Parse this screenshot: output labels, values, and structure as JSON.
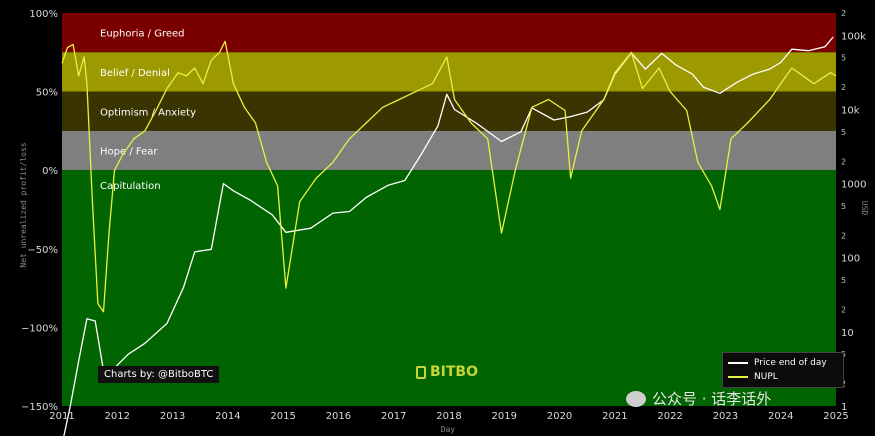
{
  "chart_data": {
    "type": "line",
    "title": "",
    "xlabel": "Day",
    "ylabel": "Net unrealized profit/loss",
    "y2label": "USD",
    "xlim": [
      2011.0,
      2025.0
    ],
    "ylim": [
      -150,
      100
    ],
    "y2_scale": "log",
    "y2lim": [
      1,
      200000
    ],
    "x_ticks": [
      "2011",
      "2012",
      "2013",
      "2014",
      "2015",
      "2016",
      "2017",
      "2018",
      "2019",
      "2020",
      "2021",
      "2022",
      "2023",
      "2024",
      "2025"
    ],
    "y_ticks": [
      {
        "value": 100,
        "label": "100%"
      },
      {
        "value": 50,
        "label": "50%"
      },
      {
        "value": 0,
        "label": "0%"
      },
      {
        "value": -50,
        "label": "−50%"
      },
      {
        "value": -100,
        "label": "−100%"
      },
      {
        "value": -150,
        "label": "−150%"
      }
    ],
    "y2_major_ticks": [
      {
        "value": 1,
        "label": "1"
      },
      {
        "value": 10,
        "label": "10"
      },
      {
        "value": 100,
        "label": "100"
      },
      {
        "value": 1000,
        "label": "1000"
      },
      {
        "value": 10000,
        "label": "10k"
      },
      {
        "value": 100000,
        "label": "100k"
      }
    ],
    "y2_minor_ticks": [
      {
        "value": 2,
        "label": "2"
      },
      {
        "value": 5,
        "label": "5"
      },
      {
        "value": 20,
        "label": "2"
      },
      {
        "value": 50,
        "label": "5"
      },
      {
        "value": 200,
        "label": "2"
      },
      {
        "value": 500,
        "label": "5"
      },
      {
        "value": 2000,
        "label": "2"
      },
      {
        "value": 5000,
        "label": "5"
      },
      {
        "value": 20000,
        "label": "2"
      },
      {
        "value": 50000,
        "label": "5"
      },
      {
        "value": 200000,
        "label": "2"
      }
    ],
    "zones": [
      {
        "label": "Euphoria / Greed",
        "from": 75,
        "to": 100,
        "color": "#7a0000"
      },
      {
        "label": "Belief / Denial",
        "from": 50,
        "to": 75,
        "color": "#9c9a00"
      },
      {
        "label": "Optimism / Anxiety",
        "from": 25,
        "to": 50,
        "color": "#3a3500"
      },
      {
        "label": "Hope / Fear",
        "from": 0,
        "to": 25,
        "color": "#7f7f7f"
      },
      {
        "label": "Capitulation",
        "from": -150,
        "to": 0,
        "color": "#006400"
      }
    ],
    "series": [
      {
        "name": "Price end of day",
        "axis": "y2",
        "color": "#ffffff",
        "x": [
          2011.0,
          2011.15,
          2011.3,
          2011.45,
          2011.6,
          2011.75,
          2011.9,
          2012.2,
          2012.5,
          2012.9,
          2013.2,
          2013.4,
          2013.7,
          2013.92,
          2014.1,
          2014.4,
          2014.8,
          2015.05,
          2015.5,
          2015.9,
          2016.2,
          2016.5,
          2016.9,
          2017.2,
          2017.5,
          2017.8,
          2017.96,
          2018.1,
          2018.5,
          2018.95,
          2019.3,
          2019.5,
          2019.9,
          2020.2,
          2020.5,
          2020.8,
          2021.0,
          2021.3,
          2021.55,
          2021.85,
          2022.1,
          2022.4,
          2022.6,
          2022.9,
          2023.2,
          2023.5,
          2023.8,
          2024.0,
          2024.2,
          2024.5,
          2024.8,
          2024.95
        ],
        "y": [
          0.3,
          1.0,
          4,
          15,
          14,
          3,
          3,
          5,
          7,
          13,
          40,
          120,
          130,
          1000,
          800,
          600,
          380,
          220,
          250,
          400,
          420,
          650,
          950,
          1100,
          2500,
          6000,
          16000,
          10000,
          6500,
          3700,
          5000,
          10500,
          7200,
          8000,
          9200,
          13500,
          30000,
          58000,
          35000,
          57000,
          40000,
          30000,
          20000,
          16500,
          23000,
          30000,
          35000,
          43000,
          65000,
          62000,
          70000,
          95000
        ]
      },
      {
        "name": "NUPL",
        "axis": "y",
        "color": "#e8f040",
        "x": [
          2011.0,
          2011.1,
          2011.2,
          2011.3,
          2011.4,
          2011.45,
          2011.55,
          2011.65,
          2011.75,
          2011.85,
          2011.95,
          2012.1,
          2012.3,
          2012.5,
          2012.7,
          2012.9,
          2013.1,
          2013.25,
          2013.4,
          2013.55,
          2013.7,
          2013.85,
          2013.95,
          2014.1,
          2014.3,
          2014.5,
          2014.7,
          2014.9,
          2015.05,
          2015.3,
          2015.6,
          2015.9,
          2016.2,
          2016.5,
          2016.8,
          2017.1,
          2017.4,
          2017.7,
          2017.96,
          2018.1,
          2018.4,
          2018.7,
          2018.95,
          2019.2,
          2019.5,
          2019.8,
          2020.1,
          2020.2,
          2020.4,
          2020.8,
          2021.0,
          2021.3,
          2021.5,
          2021.8,
          2022.0,
          2022.3,
          2022.5,
          2022.75,
          2022.9,
          2023.1,
          2023.4,
          2023.8,
          2024.0,
          2024.2,
          2024.6,
          2024.9,
          2025.0
        ],
        "y": [
          68,
          78,
          80,
          60,
          72,
          55,
          -20,
          -85,
          -90,
          -40,
          0,
          10,
          20,
          25,
          38,
          52,
          62,
          60,
          65,
          55,
          70,
          75,
          82,
          55,
          40,
          30,
          5,
          -10,
          -75,
          -20,
          -5,
          5,
          20,
          30,
          40,
          45,
          50,
          55,
          72,
          45,
          30,
          20,
          -40,
          0,
          40,
          45,
          38,
          -5,
          25,
          45,
          62,
          75,
          52,
          65,
          50,
          38,
          5,
          -10,
          -25,
          20,
          30,
          45,
          55,
          65,
          55,
          62,
          60
        ]
      }
    ],
    "legend": {
      "position": "bottom-right",
      "entries": [
        "Price end of day",
        "NUPL"
      ]
    },
    "credit": "Charts by: @BitboBTC",
    "brand": "BITBO",
    "watermark": "公众号 · 话李话外"
  }
}
